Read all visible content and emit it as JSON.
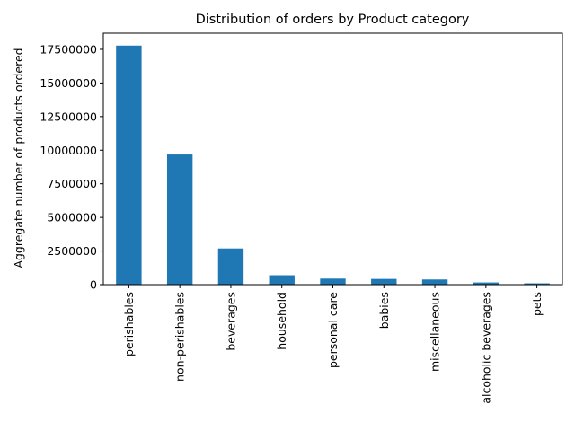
{
  "chart_data": {
    "type": "bar",
    "title": "Distribution of orders by Product category",
    "xlabel": "",
    "ylabel": "Aggregate number of products ordered",
    "categories": [
      "perishables",
      "non-perishables",
      "beverages",
      "household",
      "personal care",
      "babies",
      "miscellaneous",
      "alcoholic beverages",
      "pets"
    ],
    "values": [
      17780000,
      9680000,
      2690000,
      699000,
      448000,
      424000,
      383000,
      160000,
      97000
    ],
    "ylim": [
      0,
      18700000
    ],
    "yticks": [
      0,
      2500000,
      5000000,
      7500000,
      10000000,
      12500000,
      15000000,
      17500000
    ],
    "ytick_labels": [
      "0",
      "2500000",
      "5000000",
      "7500000",
      "10000000",
      "12500000",
      "15000000",
      "17500000"
    ],
    "bar_color": "#1f77b4",
    "grid": false,
    "legend": "none"
  }
}
